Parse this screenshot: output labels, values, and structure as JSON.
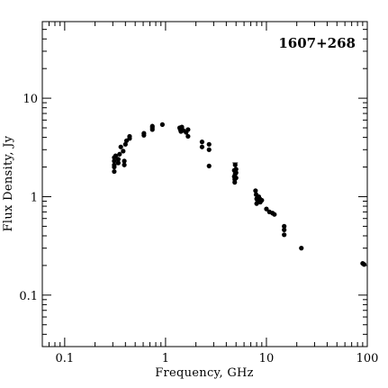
{
  "chart_data": {
    "type": "scatter",
    "title": "",
    "annotation": "1607+268",
    "xlabel": "Frequency, GHz",
    "ylabel": "Flux Density, Jy",
    "xscale": "log",
    "yscale": "log",
    "xlim": [
      0.06,
      100
    ],
    "ylim": [
      0.03,
      60
    ],
    "grid": false,
    "x_ticks": [
      {
        "value": 0.1,
        "label": "0.1"
      },
      {
        "value": 1,
        "label": "1"
      },
      {
        "value": 10,
        "label": "10"
      },
      {
        "value": 100,
        "label": "100"
      }
    ],
    "y_ticks": [
      {
        "value": 0.1,
        "label": "0.1"
      },
      {
        "value": 1,
        "label": "1"
      },
      {
        "value": 10,
        "label": "10"
      }
    ],
    "series": [
      {
        "points": [
          [
            0.31,
            1.8
          ],
          [
            0.31,
            2.0
          ],
          [
            0.31,
            2.1
          ],
          [
            0.31,
            2.3
          ],
          [
            0.31,
            2.5
          ],
          [
            0.32,
            2.6
          ],
          [
            0.34,
            2.2
          ],
          [
            0.34,
            2.4
          ],
          [
            0.35,
            2.7
          ],
          [
            0.36,
            3.2
          ],
          [
            0.38,
            2.9
          ],
          [
            0.39,
            2.1
          ],
          [
            0.39,
            2.3
          ],
          [
            0.4,
            3.4
          ],
          [
            0.41,
            3.7
          ],
          [
            0.44,
            3.9
          ],
          [
            0.44,
            4.1
          ],
          [
            0.61,
            4.2
          ],
          [
            0.61,
            4.4
          ],
          [
            0.74,
            4.8
          ],
          [
            0.74,
            5.0
          ],
          [
            0.74,
            5.2
          ],
          [
            0.93,
            5.4
          ],
          [
            1.38,
            5.0
          ],
          [
            1.4,
            4.8
          ],
          [
            1.42,
            4.6
          ],
          [
            1.45,
            5.1
          ],
          [
            1.5,
            4.7
          ],
          [
            1.6,
            4.5
          ],
          [
            1.67,
            4.8
          ],
          [
            1.67,
            4.1
          ],
          [
            2.3,
            3.6
          ],
          [
            2.3,
            3.2
          ],
          [
            2.7,
            3.4
          ],
          [
            2.7,
            3.0
          ],
          [
            2.7,
            2.05
          ],
          [
            4.8,
            1.85
          ],
          [
            4.8,
            1.6
          ],
          [
            4.85,
            1.5
          ],
          [
            4.85,
            1.4
          ],
          [
            4.9,
            1.7
          ],
          [
            4.9,
            2.1
          ],
          [
            5.0,
            1.9
          ],
          [
            5.0,
            1.75
          ],
          [
            5.0,
            1.55
          ],
          [
            7.8,
            1.15
          ],
          [
            7.9,
            1.05
          ],
          [
            8.0,
            0.95
          ],
          [
            8.0,
            0.85
          ],
          [
            8.2,
            0.9
          ],
          [
            8.4,
            1.0
          ],
          [
            8.6,
            0.95
          ],
          [
            8.7,
            0.88
          ],
          [
            9.0,
            0.92
          ],
          [
            10.0,
            0.75
          ],
          [
            10.7,
            0.7
          ],
          [
            11.5,
            0.68
          ],
          [
            12.0,
            0.66
          ],
          [
            15.0,
            0.5
          ],
          [
            15.0,
            0.46
          ],
          [
            15.0,
            0.41
          ],
          [
            22.2,
            0.3
          ],
          [
            90.0,
            0.21
          ],
          [
            93.0,
            0.205
          ]
        ]
      }
    ],
    "error_bars": [
      {
        "x": 4.9,
        "y_low": 1.85,
        "y_high": 2.2
      }
    ]
  }
}
